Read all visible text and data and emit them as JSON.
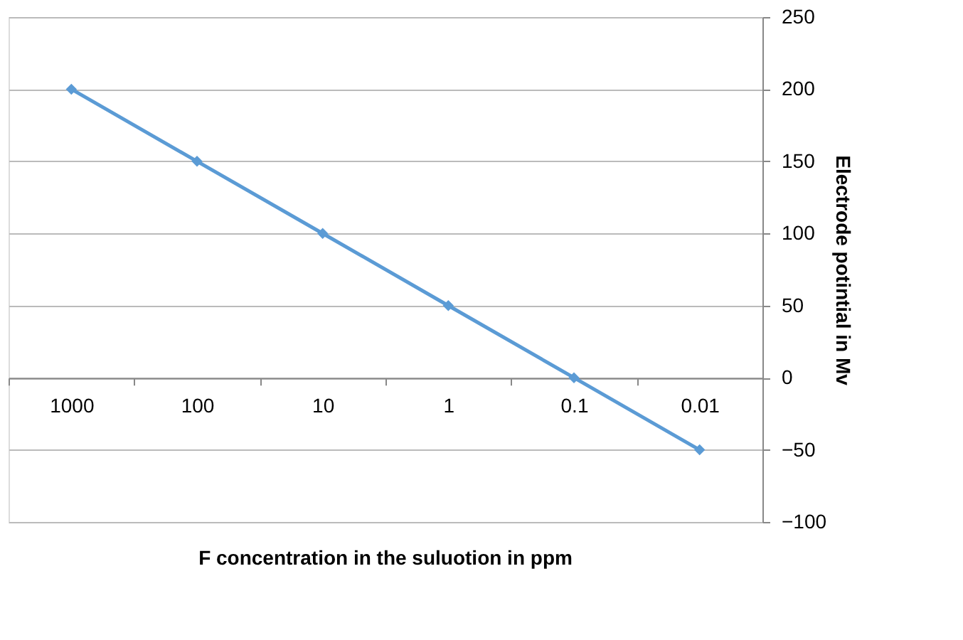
{
  "chart_data": {
    "type": "line",
    "xlabel": "F concentration in the suluotion in ppm",
    "ylabel": "Electrode potintial in Mv",
    "categories": [
      "1000",
      "100",
      "10",
      "1",
      "0.1",
      "0.01"
    ],
    "series": [
      {
        "color": "#5b9bd5",
        "values": [
          200,
          150,
          100,
          50,
          0,
          -50
        ]
      }
    ],
    "ylim": [
      -100,
      250
    ],
    "yticks": [
      -100,
      -50,
      0,
      50,
      100,
      150,
      200,
      250
    ],
    "grid": "y",
    "marker": "diamond",
    "line_style": "solid"
  }
}
